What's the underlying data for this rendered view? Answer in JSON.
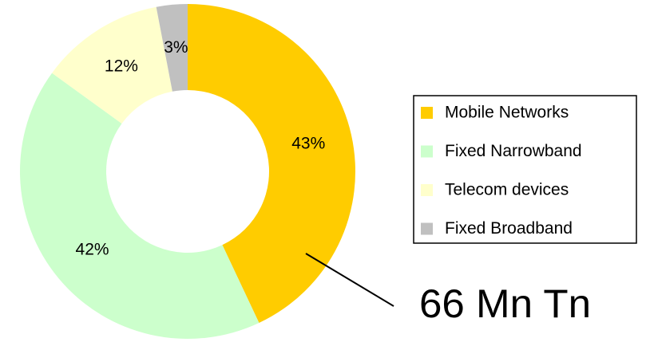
{
  "chart_data": {
    "type": "donut",
    "categories": [
      "Mobile Networks",
      "Fixed Narrowband",
      "Telecom devices",
      "Fixed Broadband"
    ],
    "values": [
      43,
      42,
      12,
      3
    ],
    "value_labels": [
      "43%",
      "42%",
      "12%",
      "3%"
    ],
    "colors": [
      "#ffcc00",
      "#ccffcc",
      "#ffffcc",
      "#c0c0c0"
    ],
    "annotation": "66 Mn Tn",
    "legend": "right"
  }
}
